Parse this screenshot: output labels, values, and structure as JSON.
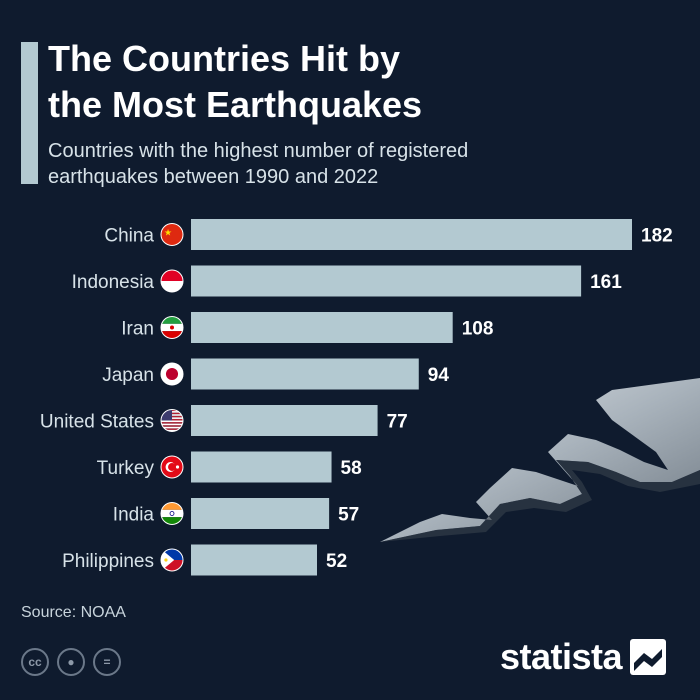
{
  "title_line1": "The Countries Hit by",
  "title_line2": "the Most Earthquakes",
  "subtitle_line1": "Countries with the highest number of registered",
  "subtitle_line2": "earthquakes between 1990 and 2022",
  "source": "Source: NOAA",
  "brand": "statista",
  "colors": {
    "background": "#0f1b2e",
    "bar": "#b3c9d1",
    "text": "#ffffff",
    "label": "#d7e2e8"
  },
  "flag_icons": [
    "china-flag-icon",
    "indonesia-flag-icon",
    "iran-flag-icon",
    "japan-flag-icon",
    "united-states-flag-icon",
    "turkey-flag-icon",
    "india-flag-icon",
    "philippines-flag-icon"
  ],
  "chart_data": {
    "type": "bar",
    "orientation": "horizontal",
    "categories": [
      "China",
      "Indonesia",
      "Iran",
      "Japan",
      "United States",
      "Turkey",
      "India",
      "Philippines"
    ],
    "values": [
      182,
      161,
      108,
      94,
      77,
      58,
      57,
      52
    ],
    "title": "The Countries Hit by the Most Earthquakes",
    "subtitle": "Countries with the highest number of registered earthquakes between 1990 and 2022",
    "xlim": [
      0,
      182
    ],
    "grid": false,
    "legend": "none"
  }
}
